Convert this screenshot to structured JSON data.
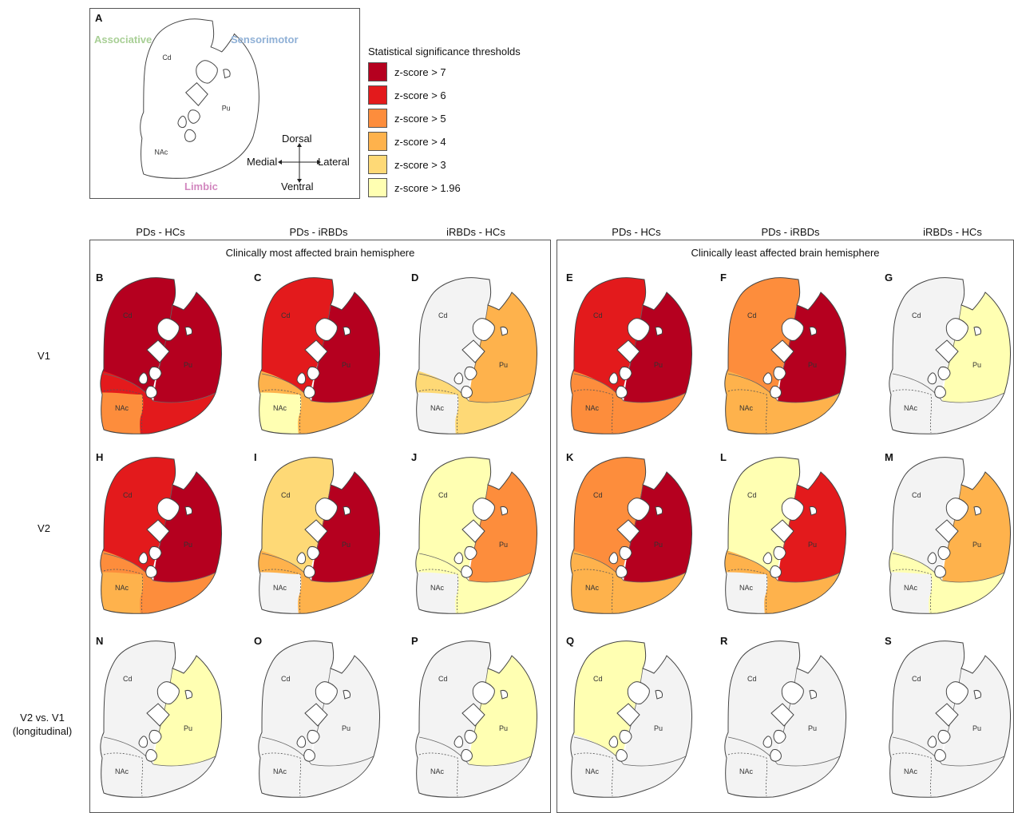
{
  "legend": {
    "title": "Statistical significance thresholds",
    "items": [
      {
        "label": "z-score > 7",
        "color": "#b5001f"
      },
      {
        "label": "z-score > 6",
        "color": "#e31a1c"
      },
      {
        "label": "z-score > 5",
        "color": "#fd8d3c"
      },
      {
        "label": "z-score > 4",
        "color": "#feb24c"
      },
      {
        "label": "z-score > 3",
        "color": "#fed976"
      },
      {
        "label": "z-score > 1.96",
        "color": "#ffffb2"
      }
    ]
  },
  "colors": {
    "associative": "#b8d9a8",
    "sensorimotor": "#a3bfdd",
    "limbic": "#db95c8",
    "nonsig": "#f3f3f3",
    "outline": "#444444"
  },
  "panelA": {
    "letter": "A",
    "associative": "Associative",
    "sensorimotor": "Sensorimotor",
    "limbic": "Limbic",
    "cd": "Cd",
    "pu": "Pu",
    "nac": "NAc",
    "dorsal": "Dorsal",
    "ventral": "Ventral",
    "medial": "Medial",
    "lateral": "Lateral"
  },
  "groups": {
    "most": "Clinically most affected brain hemisphere",
    "least": "Clinically least affected brain hemisphere"
  },
  "columns": [
    "PDs - HCs",
    "PDs - iRBDs",
    "iRBDs - HCs",
    "PDs - HCs",
    "PDs - iRBDs",
    "iRBDs - HCs"
  ],
  "rows": [
    {
      "label": "V1",
      "label2": ""
    },
    {
      "label": "V2",
      "label2": ""
    },
    {
      "label": "V2 vs. V1",
      "label2": "(longitudinal)"
    }
  ],
  "region_labels": {
    "cd": "Cd",
    "pu": "Pu",
    "nac": "NAc"
  },
  "panels": [
    {
      "letter": "B",
      "assoc": 7,
      "sensori": 7,
      "limbic": 6,
      "nac": 5
    },
    {
      "letter": "C",
      "assoc": 6,
      "sensori": 7,
      "limbic": 4,
      "nac": 1.96
    },
    {
      "letter": "D",
      "assoc": 0,
      "sensori": 4,
      "limbic": 3,
      "nac": 0
    },
    {
      "letter": "E",
      "assoc": 6,
      "sensori": 7,
      "limbic": 5,
      "nac": 5
    },
    {
      "letter": "F",
      "assoc": 5,
      "sensori": 7,
      "limbic": 4,
      "nac": 4
    },
    {
      "letter": "G",
      "assoc": 0,
      "sensori": 1.96,
      "limbic": 0,
      "nac": 0
    },
    {
      "letter": "H",
      "assoc": 6,
      "sensori": 7,
      "limbic": 5,
      "nac": 4
    },
    {
      "letter": "I",
      "assoc": 3,
      "sensori": 7,
      "limbic": 4,
      "nac": 0
    },
    {
      "letter": "J",
      "assoc": 1.96,
      "sensori": 5,
      "limbic": 1.96,
      "nac": 0
    },
    {
      "letter": "K",
      "assoc": 5,
      "sensori": 7,
      "limbic": 4,
      "nac": 4
    },
    {
      "letter": "L",
      "assoc": 1.96,
      "sensori": 6,
      "limbic": 4,
      "nac": 0
    },
    {
      "letter": "M",
      "assoc": 0,
      "sensori": 4,
      "limbic": 1.96,
      "nac": 0
    },
    {
      "letter": "N",
      "assoc": 0,
      "sensori": 1.96,
      "limbic": 0,
      "nac": 0
    },
    {
      "letter": "O",
      "assoc": 0,
      "sensori": 0,
      "limbic": 0,
      "nac": 0
    },
    {
      "letter": "P",
      "assoc": 0,
      "sensori": 1.96,
      "limbic": 0,
      "nac": 0
    },
    {
      "letter": "Q",
      "assoc": 1.96,
      "sensori": 0,
      "limbic": 0,
      "nac": 0
    },
    {
      "letter": "R",
      "assoc": 0,
      "sensori": 0,
      "limbic": 0,
      "nac": 0
    },
    {
      "letter": "S",
      "assoc": 0,
      "sensori": 0,
      "limbic": 0,
      "nac": 0
    }
  ]
}
